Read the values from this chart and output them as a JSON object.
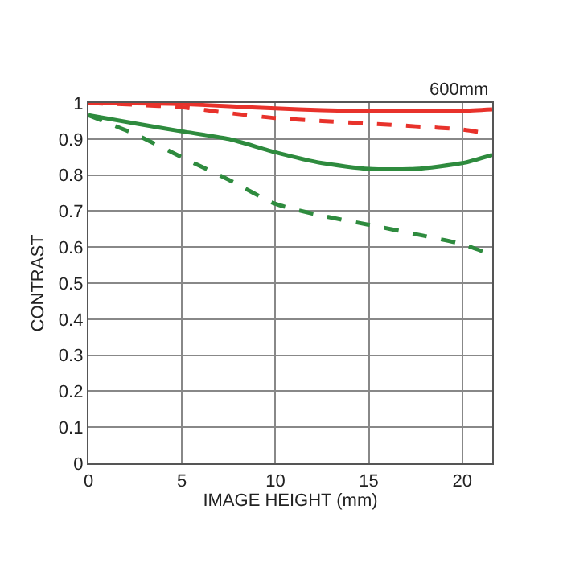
{
  "chart_data": {
    "type": "line",
    "xlabel": "IMAGE HEIGHT (mm)",
    "ylabel": "CONTRAST",
    "annotations": [
      "600mm"
    ],
    "x": [
      0,
      2.5,
      5,
      7.5,
      10,
      12.5,
      15,
      17.5,
      20,
      21.6
    ],
    "series": [
      {
        "color": "#e8322b",
        "line_style": "solid",
        "values": [
          1.0,
          0.999,
          0.997,
          0.991,
          0.985,
          0.98,
          0.977,
          0.977,
          0.978,
          0.982
        ]
      },
      {
        "color": "#e8322b",
        "line_style": "dashed",
        "values": [
          1.0,
          0.995,
          0.988,
          0.972,
          0.958,
          0.95,
          0.943,
          0.935,
          0.926,
          0.913
        ]
      },
      {
        "color": "#2e8b3e",
        "line_style": "solid",
        "values": [
          0.966,
          0.943,
          0.921,
          0.9,
          0.863,
          0.833,
          0.817,
          0.817,
          0.833,
          0.856
        ]
      },
      {
        "color": "#2e8b3e",
        "line_style": "dashed",
        "values": [
          0.966,
          0.913,
          0.849,
          0.787,
          0.72,
          0.687,
          0.662,
          0.636,
          0.608,
          0.578
        ]
      }
    ],
    "xlim": [
      0,
      21.6
    ],
    "ylim": [
      0,
      1
    ],
    "xticks": [
      0,
      5,
      10,
      15,
      20
    ],
    "yticks": [
      0,
      0.1,
      0.2,
      0.3,
      0.4,
      0.5,
      0.6,
      0.7,
      0.8,
      0.9,
      1
    ],
    "grid": true
  }
}
